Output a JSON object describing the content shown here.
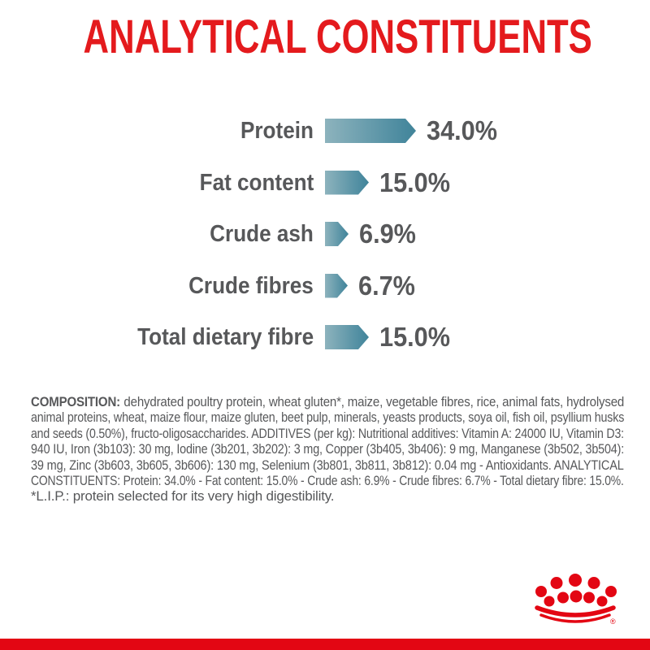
{
  "title": {
    "text": "ANALYTICAL CONSTITUENTS",
    "color": "#e41a1d"
  },
  "chart_data": {
    "type": "bar",
    "orientation": "horizontal",
    "title": "ANALYTICAL CONSTITUENTS",
    "categories": [
      "Protein",
      "Fat content",
      "Crude ash",
      "Crude fibres",
      "Total dietary fibre"
    ],
    "values": [
      34.0,
      15.0,
      6.9,
      6.7,
      15.0
    ],
    "value_labels": [
      "34.0%",
      "15.0%",
      "6.9%",
      "6.7%",
      "15.0%"
    ],
    "unit": "percent",
    "legend": "none",
    "grid": "off",
    "bar_gradient_start": "#8db3bd",
    "bar_gradient_end": "#4a8a9f",
    "bar_tip_color": "#418499",
    "label_color": "#57585a"
  },
  "composition": {
    "label": "COMPOSITION:",
    "lines": [
      "dehydrated poultry protein, wheat gluten*, maize, vegetable fibres, rice, animal fats, hydrolysed",
      "animal proteins, wheat, maize flour, maize gluten, beet pulp, minerals, yeasts products, soya oil, fish oil, psyllium husks",
      "and seeds (0.50%), fructo-oligosaccharides. ADDITIVES (per kg): Nutritional additives: Vitamin A: 24000 IU, Vitamin D3:",
      "940 IU, Iron (3b103): 30 mg, Iodine (3b201, 3b202): 3 mg, Copper (3b405, 3b406): 9 mg, Manganese (3b502, 3b504):",
      "39 mg, Zinc (3b603, 3b605, 3b606): 130 mg, Selenium (3b801, 3b811, 3b812): 0.04 mg - Antioxidants. ANALYTICAL",
      "CONSTITUENTS: Protein: 34.0% - Fat content: 15.0% - Crude ash: 6.9% - Crude fibres: 6.7% - Total dietary fibre: 15.0%.",
      "*L.I.P.: protein selected for its very high digestibility."
    ],
    "text_color": "#57585a"
  },
  "footer": {
    "logo": "royal-canin-crown",
    "logo_color": "#e30613",
    "bar_color": "#e30613"
  }
}
